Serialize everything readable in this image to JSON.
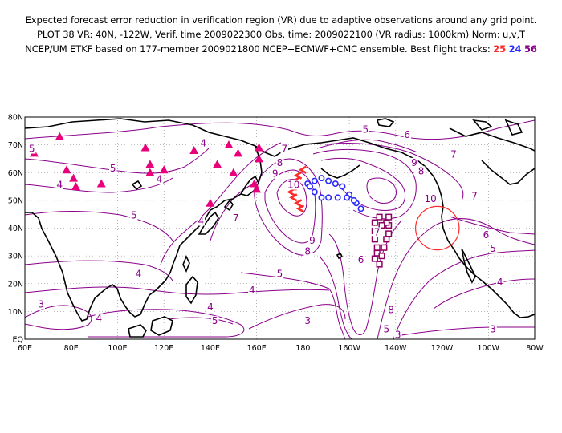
{
  "header": {
    "line1": "Expected forecast error reduction in verification region (VR) due to adaptive observations around any grid point.",
    "line2": "PLOT 38 VR: 40N, -122W, Verif. time 2009022300 Obs. time: 2009022100 (VR radius: 1000km) Norm: u,v,T",
    "line3_prefix": "NCEP/UM ETKF based on 177-member 2009021800 NCEP+ECMWF+CMC ensemble. Best flight tracks:",
    "track_a": "25",
    "track_b": "24",
    "track_c": "56"
  },
  "map": {
    "lon_range": [
      60,
      280
    ],
    "lat_range": [
      0,
      80
    ],
    "y_ticks": [
      "80N",
      "70N",
      "60N",
      "50N",
      "40N",
      "30N",
      "20N",
      "10N",
      "EQ"
    ],
    "x_ticks": [
      "60E",
      "80E",
      "100E",
      "120E",
      "140E",
      "160E",
      "180",
      "160W",
      "140W",
      "120W",
      "100W",
      "80W"
    ],
    "contour_labels": [
      {
        "text": "5",
        "lon": 63,
        "lat": 68
      },
      {
        "text": "5",
        "lon": 98,
        "lat": 61
      },
      {
        "text": "4",
        "lon": 75,
        "lat": 55
      },
      {
        "text": "4",
        "lon": 118,
        "lat": 57
      },
      {
        "text": "4",
        "lon": 137,
        "lat": 70
      },
      {
        "text": "5",
        "lon": 107,
        "lat": 44
      },
      {
        "text": "4",
        "lon": 136,
        "lat": 42
      },
      {
        "text": "7",
        "lon": 151,
        "lat": 43
      },
      {
        "text": "5",
        "lon": 207,
        "lat": 75
      },
      {
        "text": "6",
        "lon": 225,
        "lat": 73
      },
      {
        "text": "7",
        "lon": 172,
        "lat": 68
      },
      {
        "text": "8",
        "lon": 170,
        "lat": 63
      },
      {
        "text": "9",
        "lon": 168,
        "lat": 59
      },
      {
        "text": "10",
        "lon": 176,
        "lat": 55
      },
      {
        "text": "9",
        "lon": 228,
        "lat": 63
      },
      {
        "text": "8",
        "lon": 231,
        "lat": 60
      },
      {
        "text": "7",
        "lon": 245,
        "lat": 66
      },
      {
        "text": "10",
        "lon": 235,
        "lat": 50
      },
      {
        "text": "7",
        "lon": 254,
        "lat": 51
      },
      {
        "text": "9",
        "lon": 184,
        "lat": 35
      },
      {
        "text": "8",
        "lon": 182,
        "lat": 31
      },
      {
        "text": "7",
        "lon": 212,
        "lat": 38
      },
      {
        "text": "6",
        "lon": 205,
        "lat": 28
      },
      {
        "text": "6",
        "lon": 259,
        "lat": 37
      },
      {
        "text": "5",
        "lon": 262,
        "lat": 32
      },
      {
        "text": "5",
        "lon": 170,
        "lat": 23
      },
      {
        "text": "4",
        "lon": 109,
        "lat": 23
      },
      {
        "text": "4",
        "lon": 158,
        "lat": 17
      },
      {
        "text": "3",
        "lon": 67,
        "lat": 12
      },
      {
        "text": "4",
        "lon": 92,
        "lat": 7
      },
      {
        "text": "4",
        "lon": 140,
        "lat": 11
      },
      {
        "text": "5",
        "lon": 142,
        "lat": 6
      },
      {
        "text": "3",
        "lon": 182,
        "lat": 6
      },
      {
        "text": "8",
        "lon": 218,
        "lat": 10
      },
      {
        "text": "5",
        "lon": 216,
        "lat": 3
      },
      {
        "text": "3",
        "lon": 221,
        "lat": 1
      },
      {
        "text": "4",
        "lon": 265,
        "lat": 20
      },
      {
        "text": "3",
        "lon": 262,
        "lat": 3
      }
    ],
    "observations": [
      [
        64,
        67
      ],
      [
        75,
        73
      ],
      [
        78,
        61
      ],
      [
        81,
        58
      ],
      [
        82,
        55
      ],
      [
        93,
        56
      ],
      [
        112,
        69
      ],
      [
        114,
        60
      ],
      [
        114,
        63
      ],
      [
        120,
        61
      ],
      [
        133,
        68
      ],
      [
        140,
        49
      ],
      [
        143,
        63
      ],
      [
        148,
        70
      ],
      [
        150,
        60
      ],
      [
        152,
        67
      ],
      [
        159,
        56
      ],
      [
        160,
        54
      ],
      [
        161,
        65
      ],
      [
        161,
        69
      ]
    ],
    "verification_region": {
      "lat": 40,
      "lon": -122,
      "radius_km": 1000
    },
    "tracks": {
      "track_a": [
        [
          180,
          61
        ],
        [
          178,
          59
        ],
        [
          177,
          57
        ],
        [
          176,
          55
        ],
        [
          175,
          53
        ],
        [
          176,
          51
        ],
        [
          178,
          49
        ],
        [
          179,
          47
        ]
      ],
      "track_b": [
        [
          182,
          56
        ],
        [
          185,
          57
        ],
        [
          188,
          58
        ],
        [
          191,
          57
        ],
        [
          194,
          56
        ],
        [
          197,
          55
        ],
        [
          200,
          52
        ],
        [
          203,
          49
        ],
        [
          205,
          47
        ],
        [
          202,
          50
        ],
        [
          199,
          51
        ],
        [
          195,
          51
        ],
        [
          191,
          51
        ],
        [
          188,
          51
        ],
        [
          185,
          53
        ],
        [
          183,
          55
        ]
      ],
      "track_c": [
        [
          211,
          42
        ],
        [
          211,
          39
        ],
        [
          211,
          36
        ],
        [
          212,
          33
        ],
        [
          212,
          31
        ],
        [
          211,
          29
        ],
        [
          213,
          27
        ],
        [
          214,
          30
        ],
        [
          215,
          33
        ],
        [
          216,
          36
        ],
        [
          217,
          38
        ],
        [
          217,
          41
        ],
        [
          217,
          44
        ],
        [
          216,
          42
        ],
        [
          214,
          41
        ],
        [
          213,
          44
        ]
      ]
    },
    "colors": {
      "contour": "#8b008b",
      "coast": "#000000",
      "obs": "#e8007a",
      "verif_circle": "#ff2a2a",
      "track_a": "#ff2a2a",
      "track_b": "#2a2aff",
      "track_c": "#8b0060",
      "grid": "#808080"
    }
  }
}
